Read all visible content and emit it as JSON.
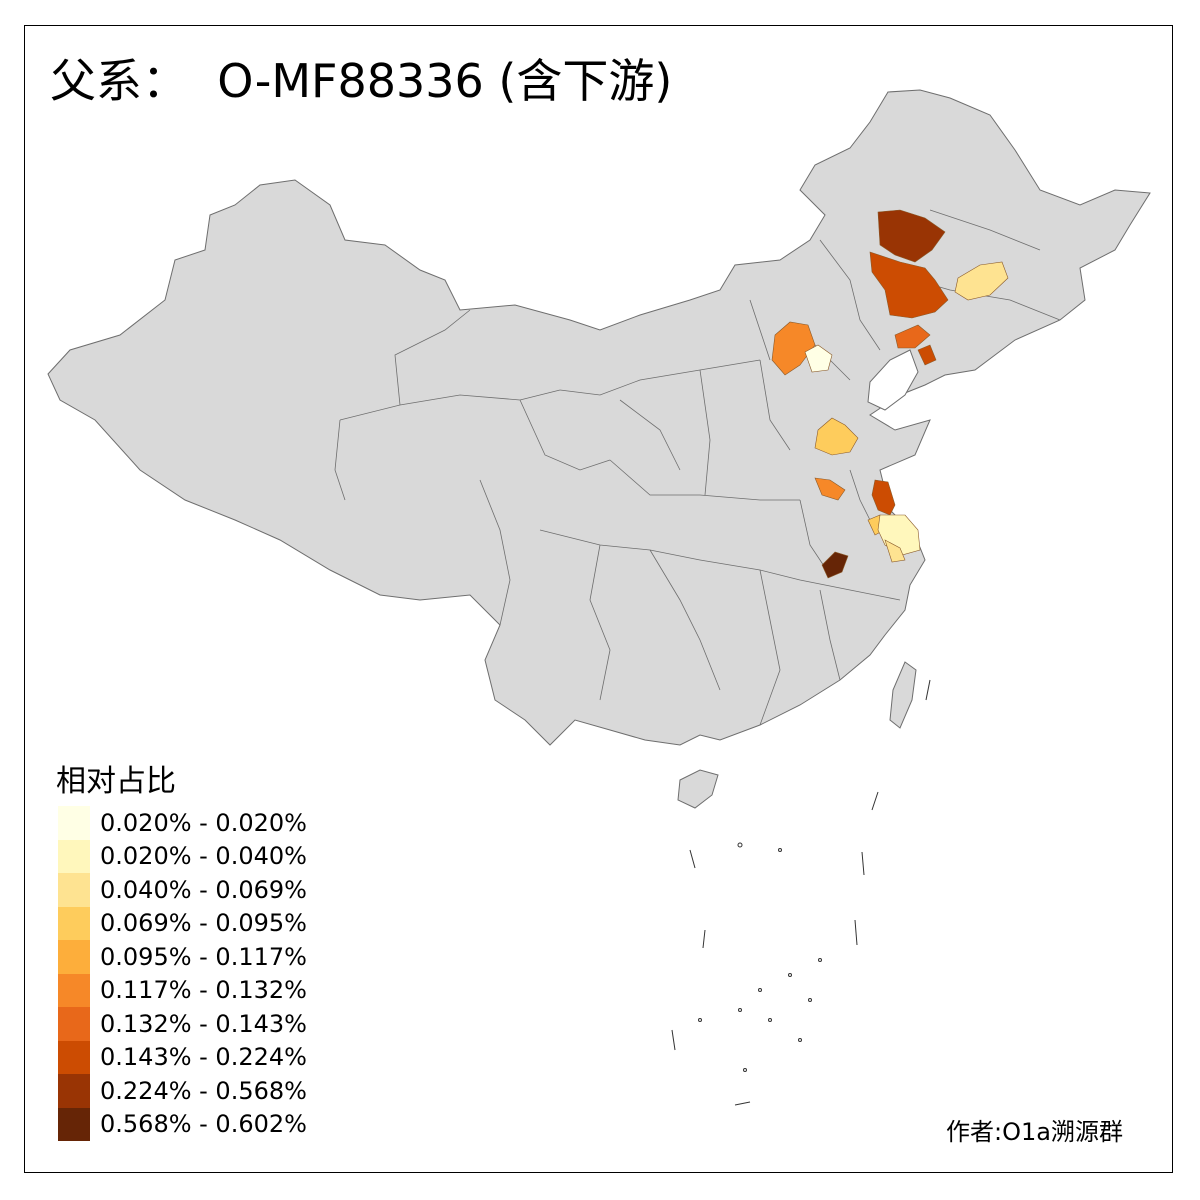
{
  "title": "父系：  O-MF88336 (含下游)",
  "credit": "作者:O1a溯源群",
  "legend": {
    "title": "相对占比",
    "items": [
      {
        "label": "0.020% - 0.020%",
        "color": "#FFFFE5"
      },
      {
        "label": "0.020% - 0.040%",
        "color": "#FFF7BC"
      },
      {
        "label": "0.040% - 0.069%",
        "color": "#FEE391"
      },
      {
        "label": "0.069% - 0.095%",
        "color": "#FECC5C"
      },
      {
        "label": "0.095% - 0.117%",
        "color": "#FDAE3B"
      },
      {
        "label": "0.117% - 0.132%",
        "color": "#F68828"
      },
      {
        "label": "0.132% - 0.143%",
        "color": "#E8681A"
      },
      {
        "label": "0.143% - 0.224%",
        "color": "#CC4C02"
      },
      {
        "label": "0.224% - 0.568%",
        "color": "#993404"
      },
      {
        "label": "0.568% - 0.602%",
        "color": "#662506"
      }
    ]
  },
  "map": {
    "base_fill": "#D9D9D9",
    "border_color": "#6E6E6E"
  }
}
